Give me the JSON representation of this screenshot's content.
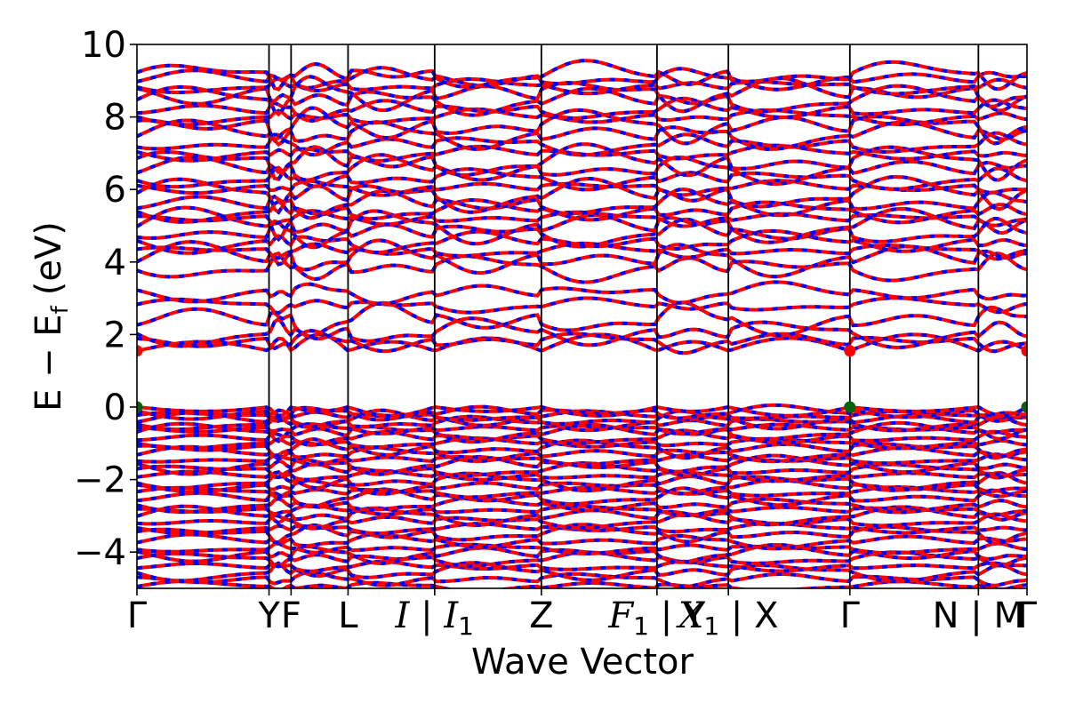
{
  "chart_data": {
    "type": "line",
    "xlabel": "Wave Vector",
    "ylabel": "E − E",
    "ylabel_sub": "f",
    "ylabel_unit": "(eV)",
    "ylim": [
      -5,
      10
    ],
    "yticks": [
      -4,
      -2,
      0,
      2,
      4,
      6,
      8,
      10
    ],
    "ytick_labels": [
      "−4",
      "−2",
      "0",
      "2",
      "4",
      "6",
      "8",
      "10"
    ],
    "kpath_positions": [
      0,
      0.1484,
      0.1732,
      0.2372,
      0.3345,
      0.4544,
      0.5843,
      0.6645,
      0.801,
      0.9454,
      1.0
    ],
    "kpath_labels": [
      {
        "pos": 0,
        "text": "Γ"
      },
      {
        "pos": 0.1484,
        "text": "Y"
      },
      {
        "pos": 0.1732,
        "text": "F"
      },
      {
        "pos": 0.2372,
        "text": "L"
      },
      {
        "pos": 0.3345,
        "text": "I | I",
        "sub": "1"
      },
      {
        "pos": 0.4544,
        "text": "Z"
      },
      {
        "pos": 0.5843,
        "text": "F",
        "sub": "1",
        "suffix": " | Y"
      },
      {
        "pos": 0.6645,
        "text": "X",
        "sub": "1",
        "suffix": " | X"
      },
      {
        "pos": 0.801,
        "text": "Γ"
      },
      {
        "pos": 0.9454,
        "text": "N | M"
      },
      {
        "pos": 1.0,
        "text": "Γ"
      }
    ],
    "band_colors": {
      "primary": "#ff0000",
      "secondary": "#0000ff"
    },
    "conduction_band_minimum": {
      "energy": 1.55,
      "k": [
        0,
        0.801,
        1.0
      ],
      "color": "#ff0000"
    },
    "valence_band_maximum": {
      "energy": 0.0,
      "k": [
        0,
        0.801,
        1.0
      ],
      "color": "#006400"
    },
    "valence_band_energies": [
      -4.95,
      -4.75,
      -4.55,
      -4.4,
      -4.2,
      -4.05,
      -3.9,
      -3.7,
      -3.5,
      -3.35,
      -3.15,
      -3.0,
      -2.85,
      -2.7,
      -2.5,
      -2.35,
      -2.2,
      -2.05,
      -1.9,
      -1.75,
      -1.6,
      -1.45,
      -1.3,
      -1.15,
      -1.0,
      -0.85,
      -0.7,
      -0.6,
      -0.45,
      -0.35,
      -0.25,
      -0.15,
      0.0
    ],
    "conduction_band_energies": [
      1.55,
      1.8,
      2.05,
      2.4,
      2.8,
      3.15,
      3.85,
      4.1,
      4.3,
      4.55,
      4.8,
      5.0,
      5.2,
      5.4,
      5.6,
      5.85,
      6.05,
      6.3,
      6.55,
      6.75,
      7.0,
      7.25,
      7.5,
      7.75,
      8.0,
      8.2,
      8.45,
      8.65,
      8.85,
      9.05,
      9.15
    ]
  }
}
